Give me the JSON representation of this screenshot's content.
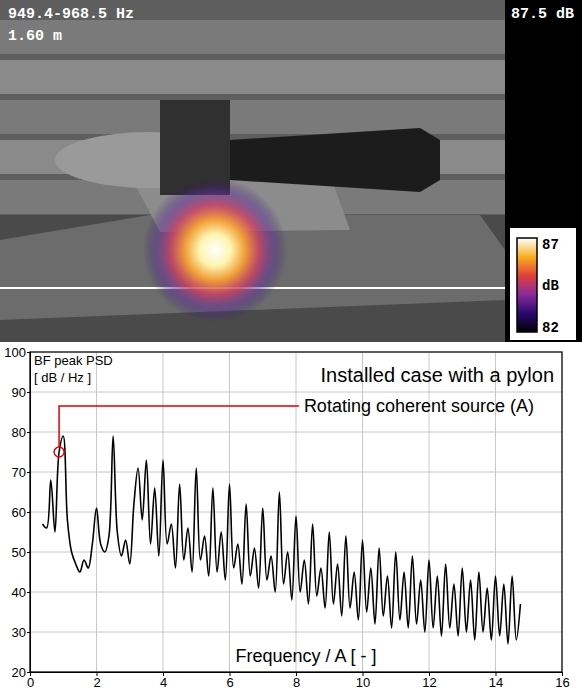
{
  "chart_data": [
    {
      "type": "beamforming_map",
      "frequency_label": "949.4-968.5 Hz",
      "distance_label": "1.60 m",
      "level_label": "87.5 dB",
      "colorbar": {
        "range": [
          82,
          87
        ],
        "ticks": [
          82,
          87
        ],
        "label": "dB"
      }
    },
    {
      "type": "line",
      "title": "Installed case with a pylon",
      "ylabel": "BF peak PSD",
      "ylabel_units": "[ dB / Hz ]",
      "xlabel": "Frequency / A [ - ]",
      "color": "#000000",
      "grid": true,
      "xlim": [
        0,
        16
      ],
      "xticks": [
        0,
        2,
        4,
        6,
        8,
        10,
        12,
        14,
        16
      ],
      "ylim": [
        20,
        100
      ],
      "yticks": [
        20,
        30,
        40,
        50,
        60,
        70,
        80,
        90,
        100
      ],
      "annotation": {
        "text": "Rotating coherent source (A)",
        "x": 0.875,
        "y": 75,
        "color": "#e00000"
      },
      "x": [
        0.375,
        0.5,
        0.625,
        0.75,
        0.875,
        1.0,
        1.125,
        1.25,
        1.375,
        1.5,
        1.625,
        1.75,
        1.875,
        2.0,
        2.125,
        2.25,
        2.375,
        2.5,
        2.625,
        2.75,
        2.875,
        3.0,
        3.125,
        3.25,
        3.375,
        3.5,
        3.625,
        3.75,
        3.875,
        4.0,
        4.125,
        4.25,
        4.375,
        4.5,
        4.625,
        4.75,
        4.875,
        5.0,
        5.125,
        5.25,
        5.375,
        5.5,
        5.625,
        5.75,
        5.875,
        6.0,
        6.125,
        6.25,
        6.375,
        6.5,
        6.625,
        6.75,
        6.875,
        7.0,
        7.125,
        7.25,
        7.375,
        7.5,
        7.625,
        7.75,
        7.875,
        8.0,
        8.125,
        8.25,
        8.375,
        8.5,
        8.625,
        8.75,
        8.875,
        9.0,
        9.125,
        9.25,
        9.375,
        9.5,
        9.625,
        9.75,
        9.875,
        10.0,
        10.125,
        10.25,
        10.375,
        10.5,
        10.625,
        10.75,
        10.875,
        11.0,
        11.125,
        11.25,
        11.375,
        11.5,
        11.625,
        11.75,
        11.875,
        12.0,
        12.125,
        12.25,
        12.375,
        12.5,
        12.625,
        12.75,
        12.875,
        13.0,
        13.125,
        13.25,
        13.375,
        13.5,
        13.625,
        13.75,
        13.875,
        14.0,
        14.125,
        14.25,
        14.375,
        14.5,
        14.625,
        14.75
      ],
      "values": [
        57,
        56,
        68,
        55,
        75,
        79,
        58,
        50,
        47,
        45,
        48,
        46,
        52,
        61,
        52,
        50,
        54,
        79,
        55,
        49,
        53,
        47,
        62,
        71,
        58,
        73,
        52,
        66,
        49,
        73,
        52,
        57,
        46,
        67,
        48,
        56,
        45,
        71,
        48,
        54,
        44,
        66,
        45,
        55,
        43,
        67,
        46,
        52,
        42,
        62,
        44,
        51,
        41,
        61,
        43,
        49,
        40,
        65,
        42,
        50,
        38,
        59,
        40,
        48,
        37,
        57,
        39,
        46,
        36,
        55,
        37,
        47,
        34,
        54,
        36,
        45,
        33,
        53,
        35,
        46,
        32,
        51,
        34,
        44,
        31,
        50,
        33,
        45,
        31,
        49,
        32,
        43,
        30,
        48,
        31,
        44,
        29,
        47,
        31,
        42,
        29,
        46,
        30,
        43,
        28,
        45,
        30,
        41,
        28,
        44,
        29,
        42,
        27,
        44,
        28,
        37
      ]
    }
  ]
}
